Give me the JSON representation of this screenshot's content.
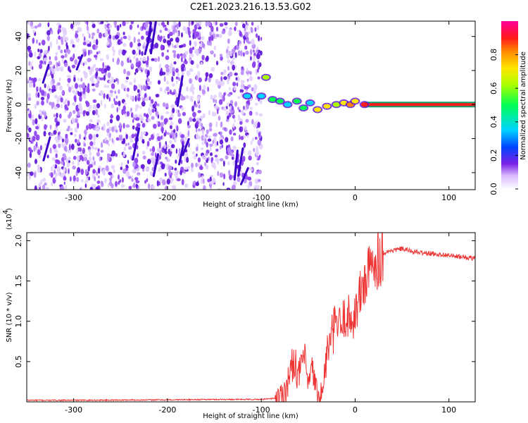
{
  "title": "C2E1.2023.216.13.53.G02",
  "colors": {
    "snr_line": "#ee3333",
    "waterfall_dots": "#7a1fe6",
    "axis": "#000000"
  },
  "chart_data": [
    {
      "type": "heatmap",
      "name": "spectrogram",
      "title": "C2E1.2023.216.13.53.G02",
      "xlabel": "Height of straight line (km)",
      "ylabel": "Frequency (Hz)",
      "xlim": [
        -350,
        128
      ],
      "ylim": [
        -50,
        49
      ],
      "xticks": [
        -300,
        -200,
        -100,
        0,
        100
      ],
      "yticks": [
        -40,
        -20,
        0,
        20,
        40
      ],
      "noise_region_xmax": -100,
      "colorbar": {
        "label": "Normalized spectral amplitude",
        "ticks": [
          0.0,
          0.2,
          0.4,
          0.6,
          0.8
        ],
        "range": [
          0,
          1
        ]
      },
      "signal_track": [
        {
          "x": -115,
          "y": 5,
          "amp": 0.4
        },
        {
          "x": -100,
          "y": 5,
          "amp": 0.45
        },
        {
          "x": -95,
          "y": 16,
          "amp": 0.65
        },
        {
          "x": -88,
          "y": 3,
          "amp": 0.5
        },
        {
          "x": -80,
          "y": 2,
          "amp": 0.55
        },
        {
          "x": -72,
          "y": 0,
          "amp": 0.45
        },
        {
          "x": -62,
          "y": 2,
          "amp": 0.55
        },
        {
          "x": -55,
          "y": -2,
          "amp": 0.5
        },
        {
          "x": -48,
          "y": 1,
          "amp": 0.45
        },
        {
          "x": -40,
          "y": -3,
          "amp": 0.75
        },
        {
          "x": -30,
          "y": -1,
          "amp": 0.8
        },
        {
          "x": -20,
          "y": 0,
          "amp": 0.7
        },
        {
          "x": -12,
          "y": 1,
          "amp": 0.8
        },
        {
          "x": -5,
          "y": 0,
          "amp": 0.85
        },
        {
          "x": 0,
          "y": 2,
          "amp": 0.8
        },
        {
          "x": 10,
          "y": 0,
          "amp": 0.9
        },
        {
          "x": 128,
          "y": 0,
          "amp": 0.9
        }
      ]
    },
    {
      "type": "line",
      "name": "snr",
      "xlabel": "Height of straight line (km)",
      "ylabel": "SNR (10 * v/v)",
      "y_multiplier_label": "(x10",
      "y_multiplier_exp": "4",
      "xlim": [
        -350,
        128
      ],
      "ylim": [
        0,
        2.1
      ],
      "xticks": [
        -300,
        -200,
        -100,
        0,
        100
      ],
      "yticks": [
        0.5,
        1.0,
        1.5,
        2.0
      ],
      "series": [
        {
          "x": [
            -350,
            -300,
            -200,
            -150,
            -100,
            -80,
            -75,
            -70,
            -65,
            -60,
            -55,
            -50,
            -45,
            -40,
            -35,
            -30,
            -25,
            -20,
            -15,
            -10,
            -5,
            0,
            5,
            10,
            15,
            20,
            30,
            40,
            50,
            60,
            70,
            80,
            90,
            100,
            110,
            128
          ],
          "y": [
            0.02,
            0.02,
            0.025,
            0.03,
            0.03,
            0.05,
            0.15,
            0.3,
            0.55,
            0.3,
            0.6,
            0.2,
            0.4,
            0.05,
            0.1,
            0.6,
            0.8,
            1.0,
            0.9,
            1.1,
            1.0,
            1.1,
            1.3,
            1.5,
            1.6,
            1.75,
            1.85,
            1.88,
            1.9,
            1.87,
            1.85,
            1.84,
            1.83,
            1.82,
            1.8,
            1.78
          ]
        }
      ]
    }
  ]
}
